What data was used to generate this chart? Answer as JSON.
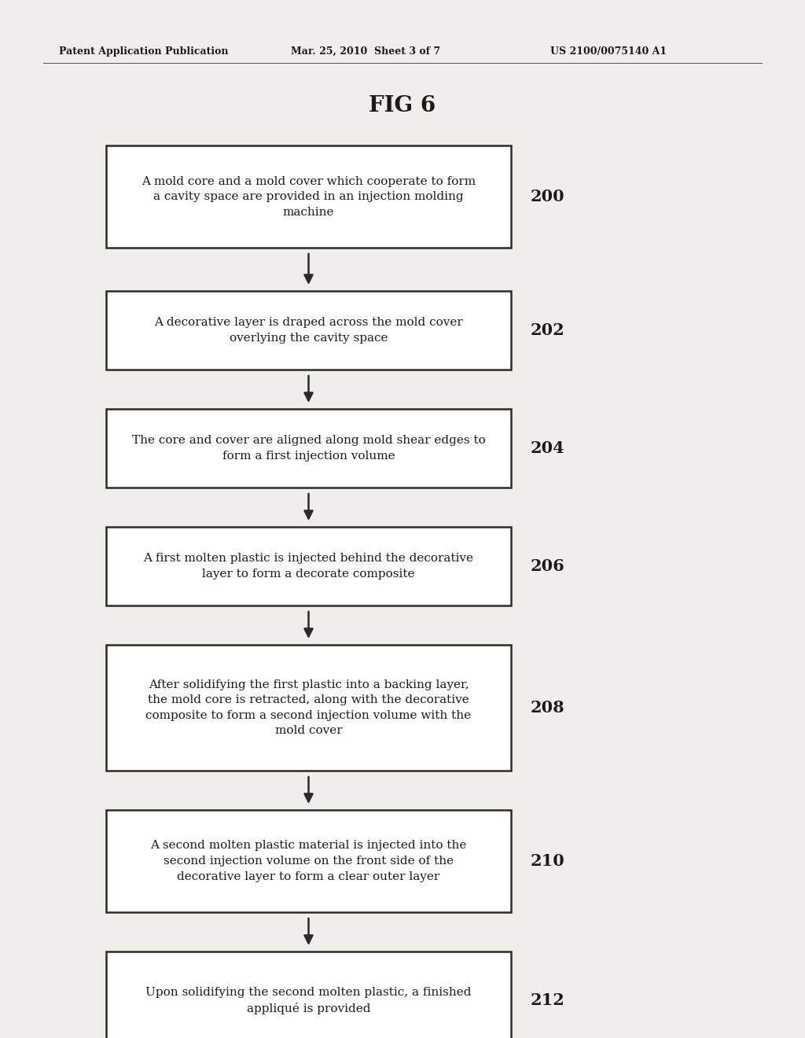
{
  "title": "FIG 6",
  "header_left": "Patent Application Publication",
  "header_center": "Mar. 25, 2010  Sheet 3 of 7",
  "header_right": "US 2100/0075140 A1",
  "background_color": "#f0eeeb",
  "text_color": "#1a1a1a",
  "box_edge_color": "#2a2a2a",
  "box_fill": "#ffffff",
  "steps": [
    {
      "label": "200",
      "text": "A mold core and a mold cover which cooperate to form\na cavity space are provided in an injection molding\nmachine"
    },
    {
      "label": "202",
      "text": "A decorative layer is draped across the mold cover\noverlying the cavity space"
    },
    {
      "label": "204",
      "text": "The core and cover are aligned along mold shear edges to\nform a first injection volume"
    },
    {
      "label": "206",
      "text": "A first molten plastic is injected behind the decorative\nlayer to form a decorate composite"
    },
    {
      "label": "208",
      "text": "After solidifying the first plastic into a backing layer,\nthe mold core is retracted, along with the decorative\ncomposite to form a second injection volume with the\nmold cover"
    },
    {
      "label": "210",
      "text": "A second molten plastic material is injected into the\nsecond injection volume on the front side of the\ndecorative layer to form a clear outer layer"
    },
    {
      "label": "212",
      "text": "Upon solidifying the second molten plastic, a finished\nappliqué is provided"
    }
  ]
}
